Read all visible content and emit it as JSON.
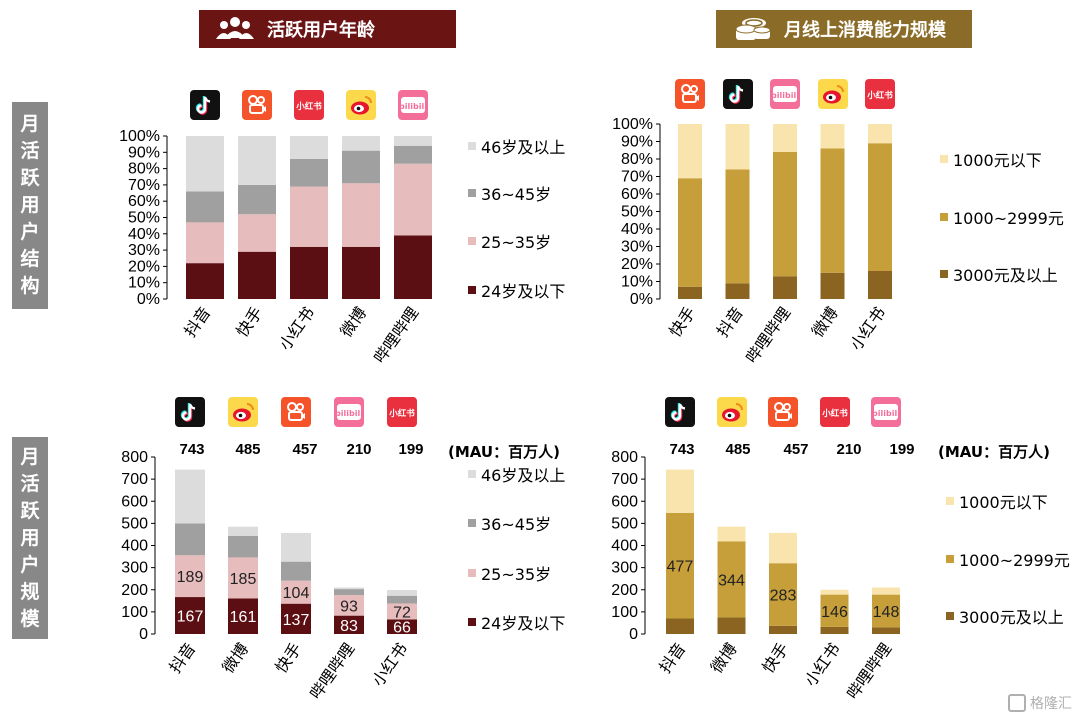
{
  "headers": {
    "age_title": "活跃用户年龄",
    "income_title": "月线上消费能力规模"
  },
  "sidebars": {
    "structure": [
      "月",
      "活",
      "跃",
      "用",
      "户",
      "结",
      "构"
    ],
    "scale": [
      "月",
      "活",
      "跃",
      "用",
      "户",
      "规",
      "模"
    ]
  },
  "colors": {
    "banner_age": "#6b1414",
    "banner_income": "#8b6b28",
    "age": [
      "#5c0f12",
      "#e6bcbc",
      "#a0a0a0",
      "#dcdcdc"
    ],
    "income": [
      "#8a6420",
      "#c79f3a",
      "#f8e4ac"
    ]
  },
  "mau": {
    "unit": "(MAU：百万人)",
    "values": [
      "743",
      "485",
      "457",
      "210",
      "199"
    ]
  },
  "watermark": "格隆汇",
  "chart_data": [
    {
      "id": "age-structure",
      "type": "bar",
      "stacked": true,
      "categories": [
        "抖音",
        "快手",
        "小红书",
        "微博",
        "哔哩哔哩"
      ],
      "icons": [
        "douyin",
        "kuaishou",
        "xiaohongshu",
        "weibo",
        "bilibili"
      ],
      "series": [
        {
          "name": "24岁及以下",
          "values": [
            22,
            29,
            32,
            32,
            39
          ]
        },
        {
          "name": "25~35岁",
          "values": [
            25,
            23,
            37,
            39,
            44
          ]
        },
        {
          "name": "36~45岁",
          "values": [
            19,
            18,
            17,
            20,
            11
          ]
        },
        {
          "name": "46岁及以上",
          "values": [
            34,
            30,
            14,
            9,
            6
          ]
        }
      ],
      "yticks": [
        "0%",
        "10%",
        "20%",
        "30%",
        "40%",
        "50%",
        "60%",
        "70%",
        "80%",
        "90%",
        "100%"
      ],
      "ylim": [
        0,
        100
      ],
      "legend": [
        "46岁及以上",
        "36~45岁",
        "25~35岁",
        "24岁及以下"
      ],
      "legend_position": "right"
    },
    {
      "id": "income-structure",
      "type": "bar",
      "stacked": true,
      "categories": [
        "快手",
        "抖音",
        "哔哩哔哩",
        "微博",
        "小红书"
      ],
      "icons": [
        "kuaishou",
        "douyin",
        "bilibili",
        "weibo",
        "xiaohongshu"
      ],
      "series": [
        {
          "name": "3000元及以上",
          "values": [
            7,
            9,
            13,
            15,
            16
          ]
        },
        {
          "name": "1000~2999元",
          "values": [
            62,
            65,
            71,
            71,
            73
          ]
        },
        {
          "name": "1000元以下",
          "values": [
            31,
            26,
            16,
            14,
            11
          ]
        }
      ],
      "yticks": [
        "0%",
        "10%",
        "20%",
        "30%",
        "40%",
        "50%",
        "60%",
        "70%",
        "80%",
        "90%",
        "100%"
      ],
      "ylim": [
        0,
        100
      ],
      "legend": [
        "1000元以下",
        "1000~2999元",
        "3000元及以上"
      ],
      "legend_position": "right"
    },
    {
      "id": "age-scale",
      "type": "bar",
      "stacked": true,
      "categories": [
        "抖音",
        "微博",
        "快手",
        "哔哩哔哩",
        "小红书"
      ],
      "icons": [
        "douyin",
        "weibo",
        "kuaishou",
        "bilibili",
        "xiaohongshu"
      ],
      "series": [
        {
          "name": "24岁及以下",
          "values": [
            167,
            161,
            137,
            83,
            66
          ]
        },
        {
          "name": "25~35岁",
          "values": [
            189,
            185,
            104,
            93,
            72
          ]
        },
        {
          "name": "36~45岁",
          "values": [
            144,
            98,
            86,
            27,
            35
          ]
        },
        {
          "name": "46岁及以上",
          "values": [
            243,
            41,
            130,
            7,
            26
          ]
        }
      ],
      "data_labels": [
        {
          "series": 0,
          "labels": [
            "167",
            "161",
            "137",
            "83",
            "66"
          ]
        },
        {
          "series": 1,
          "labels": [
            "189",
            "185",
            "104",
            "93",
            "72"
          ]
        }
      ],
      "yticks": [
        "0",
        "100",
        "200",
        "300",
        "400",
        "500",
        "600",
        "700",
        "800"
      ],
      "ylim": [
        0,
        800
      ],
      "legend": [
        "46岁及以上",
        "36~45岁",
        "25~35岁",
        "24岁及以下"
      ],
      "legend_position": "right"
    },
    {
      "id": "income-scale",
      "type": "bar",
      "stacked": true,
      "categories": [
        "抖音",
        "微博",
        "快手",
        "小红书",
        "哔哩哔哩"
      ],
      "icons": [
        "douyin",
        "weibo",
        "kuaishou",
        "xiaohongshu",
        "bilibili"
      ],
      "series": [
        {
          "name": "3000元及以上",
          "values": [
            70,
            75,
            37,
            32,
            30
          ]
        },
        {
          "name": "1000~2999元",
          "values": [
            477,
            344,
            283,
            146,
            148
          ]
        },
        {
          "name": "1000元以下",
          "values": [
            196,
            66,
            137,
            22,
            32
          ]
        }
      ],
      "data_labels": [
        {
          "series": 1,
          "labels": [
            "477",
            "344",
            "283",
            "146",
            "148"
          ]
        }
      ],
      "yticks": [
        "0",
        "100",
        "200",
        "300",
        "400",
        "500",
        "600",
        "700",
        "800"
      ],
      "ylim": [
        0,
        800
      ],
      "legend": [
        "1000元以下",
        "1000~2999元",
        "3000元及以上"
      ],
      "legend_position": "right"
    }
  ]
}
